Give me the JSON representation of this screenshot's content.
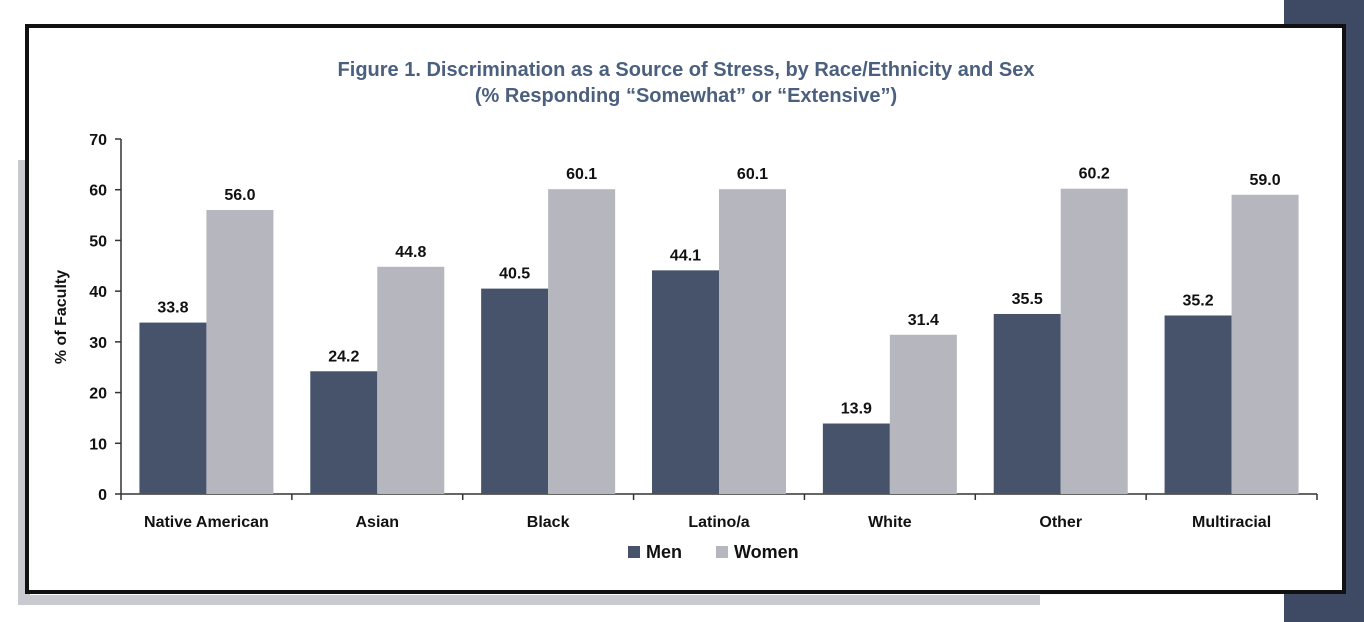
{
  "chart_data": {
    "type": "bar",
    "title": "Figure 1. Discrimination as a Source of Stress, by Race/Ethnicity and Sex",
    "subtitle": "(% Responding “Somewhat” or “Extensive”)",
    "xlabel": "",
    "ylabel": "% of Faculty",
    "ylim": [
      0,
      70
    ],
    "yticks": [
      0,
      10,
      20,
      30,
      40,
      50,
      60,
      70
    ],
    "categories": [
      "Native American",
      "Asian",
      "Black",
      "Latino/a",
      "White",
      "Other",
      "Multiracial"
    ],
    "series": [
      {
        "name": "Men",
        "color": "#46536b",
        "values": [
          33.8,
          24.2,
          40.5,
          44.1,
          13.9,
          35.5,
          35.2
        ],
        "labels": [
          "33.8",
          "24.2",
          "40.5",
          "44.1",
          "13.9",
          "35.5",
          "35.2"
        ]
      },
      {
        "name": "Women",
        "color": "#b5b6be",
        "values": [
          56.0,
          44.8,
          60.1,
          60.1,
          31.4,
          60.2,
          59.0
        ],
        "labels": [
          "56.0",
          "44.8",
          "60.1",
          "60.1",
          "31.4",
          "60.2",
          "59.0"
        ]
      }
    ],
    "legend_position": "bottom-center",
    "grid": false
  }
}
